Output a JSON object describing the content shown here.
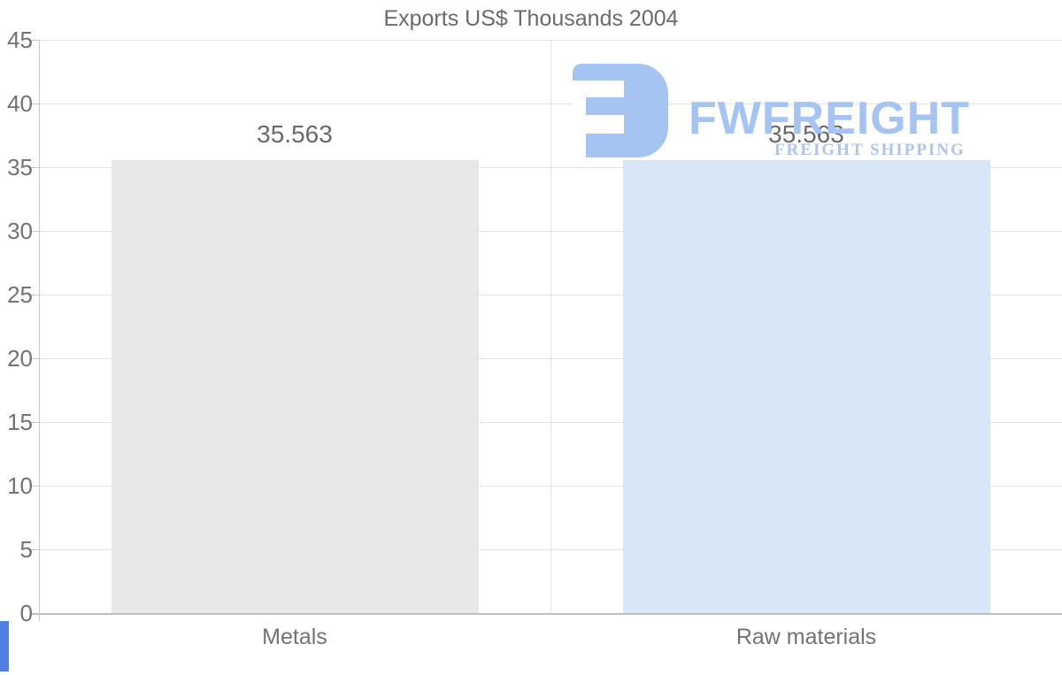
{
  "chart_data": {
    "type": "bar",
    "title": "Exports US$ Thousands 2004",
    "categories": [
      "Metals",
      "Raw materials"
    ],
    "series": [
      {
        "name": "Exports US$ Thousands 2004",
        "values": [
          35.563,
          35.563
        ]
      }
    ],
    "value_labels": [
      "35.563",
      "35.563"
    ],
    "xlabel": "",
    "ylabel": "",
    "ylim": [
      0,
      45
    ],
    "ytick_step": 5,
    "yticks": [
      "45",
      "40",
      "35",
      "30",
      "25",
      "20",
      "15",
      "10",
      "5",
      "0"
    ],
    "grid": "horizontal gridlines + vertical category separator",
    "legend": "none",
    "bar_colors": [
      "#e8e8e8",
      "#d9e6f8"
    ]
  },
  "watermark": {
    "brand": "FWFREIGHT",
    "tagline": "FREIGHT SHIPPING",
    "logo_icon": "fwfreight-logo-glyph",
    "brand_color": "#a6c4f2",
    "tagline_color": "#adc4ee"
  },
  "colors": {
    "background": "#ffffff",
    "grid_line": "#e3e3e3",
    "zero_line": "#bfbfbf",
    "axis_line": "#cbcbcb",
    "title_text": "#6b6b6b",
    "tick_text": "#737373",
    "data_label_text": "#6a6a6a",
    "edge_strip": "#4f7fe0"
  }
}
